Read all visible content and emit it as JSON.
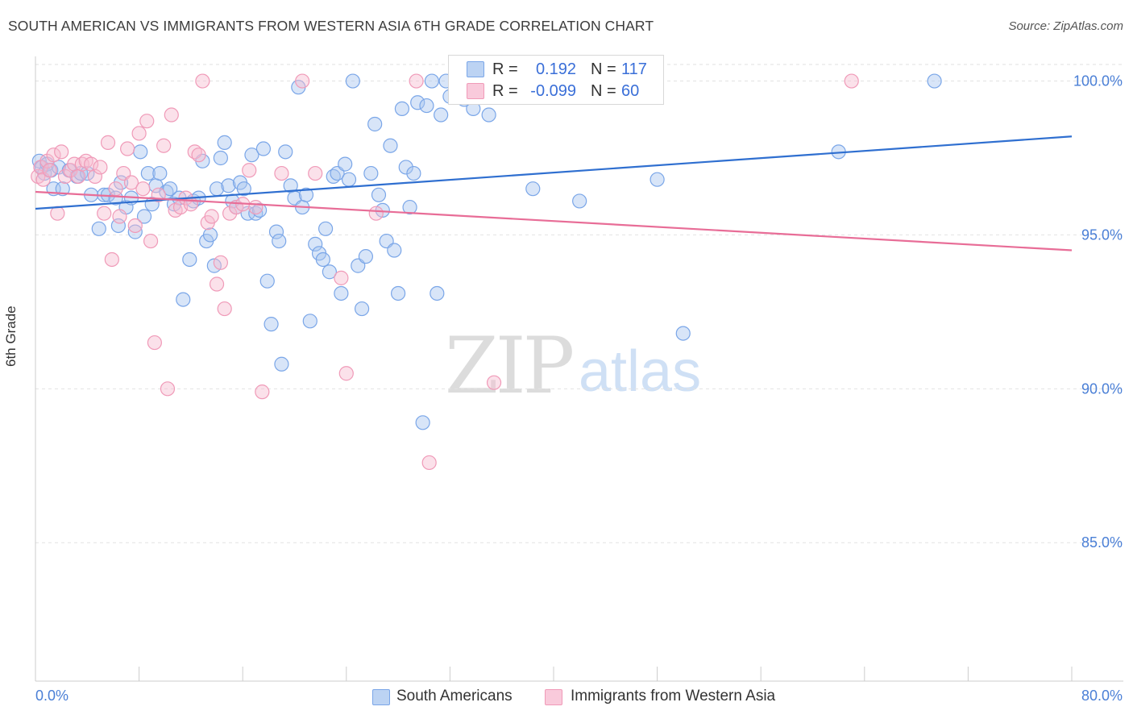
{
  "header": {
    "title": "SOUTH AMERICAN VS IMMIGRANTS FROM WESTERN ASIA 6TH GRADE CORRELATION CHART",
    "source": "Source: ZipAtlas.com"
  },
  "watermark": {
    "zip": "ZIP",
    "atlas": "atlas"
  },
  "legend": {
    "rows": [
      {
        "r_label": "R =",
        "r_value": "0.192",
        "n_label": "N =",
        "n_value": "117",
        "color": "#7aa6e8"
      },
      {
        "r_label": "R =",
        "r_value": "-0.099",
        "n_label": "N =",
        "n_value": "60",
        "color": "#f09ab8"
      }
    ]
  },
  "bottom_legend": {
    "blue_label": "South Americans",
    "pink_label": "Immigrants from Western Asia"
  },
  "colors": {
    "blue_fill": "#a9c6f0",
    "blue_stroke": "#7aa6e8",
    "blue_line": "#2f6fd0",
    "pink_fill": "#f7bcd0",
    "pink_stroke": "#f09ab8",
    "pink_line": "#e86d97",
    "tick_label": "#4a7fd6",
    "grid": "#e2e2e2"
  },
  "chart_data": {
    "type": "scatter",
    "title": "SOUTH AMERICAN VS IMMIGRANTS FROM WESTERN ASIA 6TH GRADE CORRELATION CHART",
    "xlabel": "",
    "ylabel": "6th Grade",
    "xlim": [
      0,
      80
    ],
    "ylim": [
      80.5,
      100.8
    ],
    "x_tick_labels": [
      "0.0%",
      "80.0%"
    ],
    "y_ticks": [
      {
        "value": 100.0,
        "label": "100.0%"
      },
      {
        "value": 95.0,
        "label": "95.0%"
      },
      {
        "value": 90.0,
        "label": "90.0%"
      },
      {
        "value": 85.0,
        "label": "85.0%"
      }
    ],
    "grid": true,
    "legend_position": "top-center",
    "series": [
      {
        "name": "South Americans",
        "trend": {
          "x0": 0,
          "y0": 95.85,
          "x1": 80,
          "y1": 98.2
        },
        "points": [
          [
            0.3,
            97.4
          ],
          [
            0.5,
            97.2
          ],
          [
            0.7,
            97.0
          ],
          [
            0.9,
            97.3
          ],
          [
            1.2,
            97.1
          ],
          [
            1.4,
            96.5
          ],
          [
            1.8,
            97.2
          ],
          [
            2.1,
            96.5
          ],
          [
            2.6,
            97.1
          ],
          [
            3.2,
            96.9
          ],
          [
            3.5,
            97.0
          ],
          [
            4.0,
            97.0
          ],
          [
            4.3,
            96.3
          ],
          [
            4.9,
            95.2
          ],
          [
            5.3,
            96.3
          ],
          [
            5.6,
            96.3
          ],
          [
            6.2,
            96.2
          ],
          [
            6.4,
            95.3
          ],
          [
            6.6,
            96.7
          ],
          [
            7.0,
            95.9
          ],
          [
            7.4,
            96.2
          ],
          [
            7.7,
            95.1
          ],
          [
            8.1,
            97.7
          ],
          [
            8.4,
            95.6
          ],
          [
            8.7,
            97.0
          ],
          [
            9.0,
            96.0
          ],
          [
            9.3,
            96.6
          ],
          [
            9.6,
            97.0
          ],
          [
            10.1,
            96.4
          ],
          [
            10.4,
            96.5
          ],
          [
            10.7,
            96.0
          ],
          [
            11.1,
            96.2
          ],
          [
            11.4,
            92.9
          ],
          [
            11.9,
            94.2
          ],
          [
            12.2,
            96.1
          ],
          [
            12.6,
            96.2
          ],
          [
            12.9,
            97.4
          ],
          [
            13.2,
            94.8
          ],
          [
            13.5,
            95.0
          ],
          [
            13.8,
            94.0
          ],
          [
            14.0,
            96.5
          ],
          [
            14.3,
            97.5
          ],
          [
            14.6,
            98.0
          ],
          [
            14.9,
            96.6
          ],
          [
            15.2,
            96.1
          ],
          [
            15.5,
            95.9
          ],
          [
            15.8,
            96.7
          ],
          [
            16.1,
            96.5
          ],
          [
            16.4,
            95.7
          ],
          [
            16.7,
            97.6
          ],
          [
            17.0,
            95.7
          ],
          [
            17.3,
            95.8
          ],
          [
            17.6,
            97.8
          ],
          [
            17.9,
            93.5
          ],
          [
            18.2,
            92.1
          ],
          [
            18.6,
            95.1
          ],
          [
            18.8,
            94.8
          ],
          [
            19.0,
            90.8
          ],
          [
            19.3,
            97.7
          ],
          [
            19.7,
            96.6
          ],
          [
            20.0,
            96.2
          ],
          [
            20.3,
            99.8
          ],
          [
            20.6,
            95.9
          ],
          [
            20.9,
            96.3
          ],
          [
            21.2,
            92.2
          ],
          [
            21.6,
            94.7
          ],
          [
            21.9,
            94.4
          ],
          [
            22.2,
            94.2
          ],
          [
            22.4,
            95.2
          ],
          [
            22.7,
            93.8
          ],
          [
            23.0,
            96.9
          ],
          [
            23.3,
            97.0
          ],
          [
            23.6,
            93.1
          ],
          [
            23.9,
            97.3
          ],
          [
            24.2,
            96.8
          ],
          [
            24.5,
            100.0
          ],
          [
            24.9,
            94.0
          ],
          [
            25.2,
            92.6
          ],
          [
            25.5,
            94.3
          ],
          [
            25.9,
            97.0
          ],
          [
            26.2,
            98.6
          ],
          [
            26.5,
            96.3
          ],
          [
            26.8,
            95.8
          ],
          [
            27.1,
            94.8
          ],
          [
            27.4,
            97.9
          ],
          [
            27.7,
            94.5
          ],
          [
            28.0,
            93.1
          ],
          [
            28.3,
            99.1
          ],
          [
            28.6,
            97.2
          ],
          [
            28.9,
            95.9
          ],
          [
            29.2,
            97.0
          ],
          [
            29.5,
            99.3
          ],
          [
            29.9,
            88.9
          ],
          [
            30.2,
            99.2
          ],
          [
            30.6,
            100.0
          ],
          [
            31.0,
            93.1
          ],
          [
            31.3,
            98.9
          ],
          [
            31.7,
            100.0
          ],
          [
            32.0,
            99.5
          ],
          [
            32.5,
            100.0
          ],
          [
            33.1,
            99.4
          ],
          [
            33.8,
            99.1
          ],
          [
            34.4,
            99.6
          ],
          [
            35.0,
            98.9
          ],
          [
            35.8,
            100.0
          ],
          [
            36.4,
            99.5
          ],
          [
            37.0,
            100.0
          ],
          [
            38.4,
            96.5
          ],
          [
            42.0,
            96.1
          ],
          [
            48.0,
            96.8
          ],
          [
            50.0,
            91.8
          ],
          [
            62.0,
            97.7
          ],
          [
            69.4,
            100.0
          ]
        ]
      },
      {
        "name": "Immigrants from Western Asia",
        "trend": {
          "x0": 0,
          "y0": 96.4,
          "x1": 80,
          "y1": 94.5
        },
        "points": [
          [
            0.2,
            96.9
          ],
          [
            0.4,
            97.2
          ],
          [
            0.6,
            96.8
          ],
          [
            0.9,
            97.4
          ],
          [
            1.1,
            97.1
          ],
          [
            1.4,
            97.6
          ],
          [
            1.7,
            95.7
          ],
          [
            2.0,
            97.7
          ],
          [
            2.3,
            96.9
          ],
          [
            2.7,
            97.1
          ],
          [
            3.0,
            97.3
          ],
          [
            3.3,
            96.9
          ],
          [
            3.6,
            97.3
          ],
          [
            3.9,
            97.4
          ],
          [
            4.3,
            97.3
          ],
          [
            4.6,
            96.9
          ],
          [
            5.0,
            97.2
          ],
          [
            5.3,
            95.7
          ],
          [
            5.6,
            98.0
          ],
          [
            5.9,
            94.2
          ],
          [
            6.2,
            96.5
          ],
          [
            6.5,
            95.6
          ],
          [
            6.8,
            97.0
          ],
          [
            7.1,
            97.8
          ],
          [
            7.4,
            96.7
          ],
          [
            7.7,
            95.3
          ],
          [
            8.0,
            98.3
          ],
          [
            8.3,
            96.5
          ],
          [
            8.6,
            98.7
          ],
          [
            8.9,
            94.8
          ],
          [
            9.2,
            91.5
          ],
          [
            9.5,
            96.3
          ],
          [
            9.9,
            97.9
          ],
          [
            10.2,
            90.0
          ],
          [
            10.5,
            98.9
          ],
          [
            10.8,
            95.8
          ],
          [
            11.2,
            95.9
          ],
          [
            11.6,
            96.2
          ],
          [
            12.0,
            96.0
          ],
          [
            12.3,
            97.7
          ],
          [
            12.6,
            97.6
          ],
          [
            12.9,
            100.0
          ],
          [
            13.3,
            95.4
          ],
          [
            13.6,
            95.6
          ],
          [
            14.0,
            93.4
          ],
          [
            14.3,
            94.1
          ],
          [
            14.6,
            92.6
          ],
          [
            15.0,
            95.7
          ],
          [
            15.5,
            95.9
          ],
          [
            16.0,
            96.0
          ],
          [
            16.5,
            97.1
          ],
          [
            17.0,
            95.9
          ],
          [
            17.5,
            89.9
          ],
          [
            19.0,
            97.0
          ],
          [
            20.6,
            100.0
          ],
          [
            21.6,
            97.0
          ],
          [
            23.6,
            93.6
          ],
          [
            24.0,
            90.5
          ],
          [
            26.3,
            95.7
          ],
          [
            29.4,
            100.0
          ],
          [
            30.4,
            87.6
          ],
          [
            35.4,
            90.2
          ],
          [
            37.6,
            100.0
          ],
          [
            63.0,
            100.0
          ]
        ]
      }
    ]
  }
}
